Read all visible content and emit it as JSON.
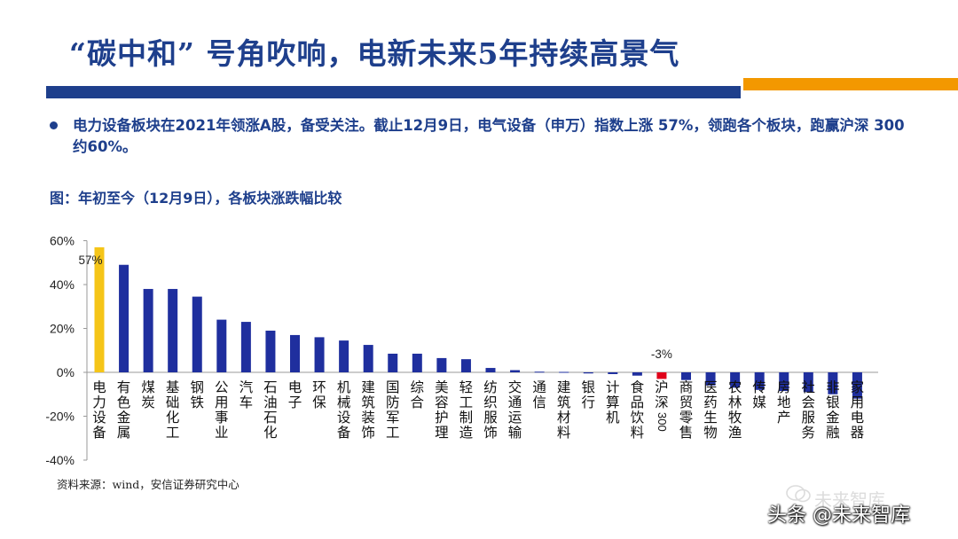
{
  "header": {
    "title": "“碳中和” 号角吹响，电新未来5年持续高景气",
    "accent_color": "#1e3f8c",
    "secondary_color": "#f39800"
  },
  "bullet": {
    "text": "电力设备板块在2021年领涨A股，备受关注。截止12月9日，电气设备（申万）指数上涨 57%，领跑各个板块，跑赢沪深 300 约60%。"
  },
  "figure": {
    "title": "图：年初至今（12月9日），各板块涨跌幅比较",
    "source": "资料来源：wind，安信证券研究中心"
  },
  "watermark": {
    "faded": "未来智库",
    "overlay": "头条 @未来智库"
  },
  "chart_data": {
    "type": "bar",
    "categories": [
      "电力设备",
      "有色金属",
      "煤炭",
      "基础化工",
      "钢铁",
      "公用事业",
      "汽车",
      "石油石化",
      "电子",
      "环保",
      "机械设备",
      "建筑装饰",
      "国防军工",
      "综合",
      "美容护理",
      "轻工制造",
      "纺织服饰",
      "交通运输",
      "通信",
      "建筑材料",
      "银行",
      "计算机",
      "食品饮料",
      "沪深300",
      "商贸零售",
      "医药生物",
      "农林牧渔",
      "传媒",
      "房地产",
      "社会服务",
      "非银金融",
      "家用电器"
    ],
    "values": [
      57,
      49,
      38,
      38,
      34.5,
      24,
      23,
      19,
      17,
      16,
      14.5,
      12.5,
      8.5,
      8.5,
      6.5,
      6,
      2,
      1,
      0.3,
      0.2,
      -0.5,
      -0.8,
      -1.5,
      -3,
      -3.5,
      -6,
      -7,
      -8,
      -8.5,
      -9,
      -10,
      -12
    ],
    "highlight": {
      "电力设备": "#f5c518",
      "沪深300": "#e0001a"
    },
    "default_color": "#1f2f9e",
    "data_labels": {
      "电力设备": "57%",
      "沪深300": "-3%"
    },
    "yticks": [
      "60%",
      "40%",
      "20%",
      "0%",
      "-20%",
      "-40%"
    ],
    "ytick_values": [
      60,
      40,
      20,
      0,
      -20,
      -40
    ],
    "ylim": [
      -40,
      60
    ],
    "grid": false,
    "legend": "none"
  }
}
